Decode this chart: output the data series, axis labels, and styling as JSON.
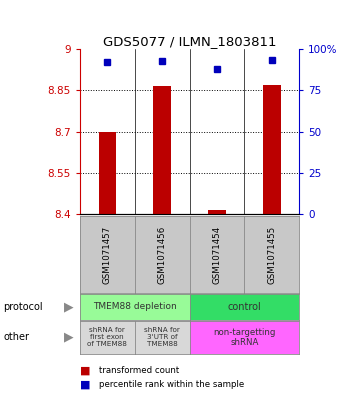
{
  "title": "GDS5077 / ILMN_1803811",
  "samples": [
    "GSM1071457",
    "GSM1071456",
    "GSM1071454",
    "GSM1071455"
  ],
  "red_values": [
    8.7,
    8.865,
    8.415,
    8.87
  ],
  "blue_values": [
    92,
    93,
    88,
    93.5
  ],
  "ylim_left": [
    8.4,
    9.0
  ],
  "ylim_right": [
    0,
    100
  ],
  "yticks_left": [
    8.4,
    8.55,
    8.7,
    8.85,
    9.0
  ],
  "yticks_right": [
    0,
    25,
    50,
    75,
    100
  ],
  "ytick_labels_left": [
    "8.4",
    "8.55",
    "8.7",
    "8.85",
    "9"
  ],
  "ytick_labels_right": [
    "0",
    "25",
    "50",
    "75",
    "100%"
  ],
  "gridlines": [
    8.55,
    8.7,
    8.85
  ],
  "protocol_labels": [
    "TMEM88 depletion",
    "control"
  ],
  "other_labels": [
    "shRNA for\nfirst exon\nof TMEM88",
    "shRNA for\n3'UTR of\nTMEM88",
    "non-targetting\nshRNA"
  ],
  "protocol_colors": [
    "#98FB98",
    "#33DD66"
  ],
  "other_colors": [
    "#D8D8D8",
    "#D8D8D8",
    "#FF66FF"
  ],
  "bar_color": "#BB0000",
  "dot_color": "#0000BB",
  "legend_red_label": "transformed count",
  "legend_blue_label": "percentile rank within the sample",
  "bg_color": "#FFFFFF",
  "plot_bg": "#FFFFFF",
  "axis_color_left": "#CC0000",
  "axis_color_right": "#0000CC",
  "sample_box_color": "#C8C8C8"
}
